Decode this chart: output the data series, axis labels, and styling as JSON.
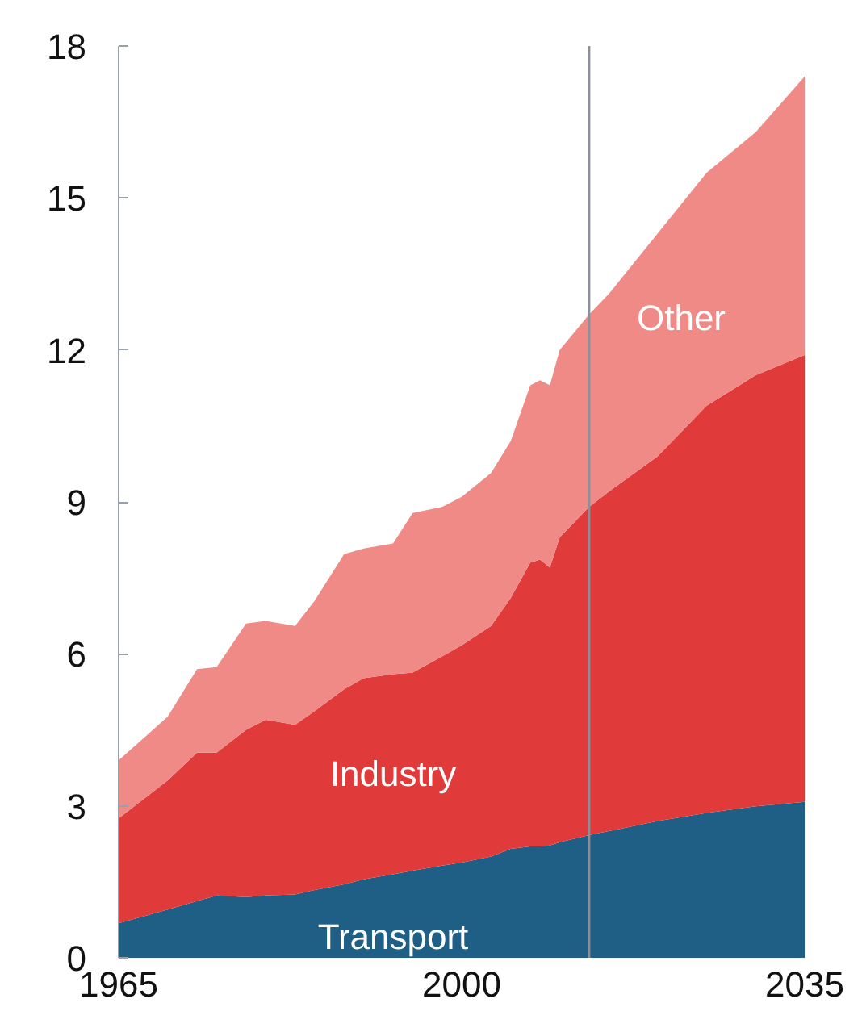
{
  "chart_data": {
    "type": "area",
    "stacked": true,
    "x": [
      1965,
      1970,
      1973,
      1975,
      1978,
      1980,
      1983,
      1985,
      1988,
      1990,
      1993,
      1995,
      1998,
      2000,
      2003,
      2005,
      2007,
      2008,
      2009,
      2010,
      2013,
      2015,
      2020,
      2025,
      2030,
      2035
    ],
    "series": [
      {
        "name": "Transport",
        "color": "#1f5f86",
        "values": [
          0.68,
          0.95,
          1.12,
          1.23,
          1.2,
          1.23,
          1.25,
          1.34,
          1.45,
          1.55,
          1.65,
          1.72,
          1.82,
          1.88,
          2.0,
          2.15,
          2.2,
          2.2,
          2.22,
          2.28,
          2.42,
          2.5,
          2.7,
          2.86,
          2.99,
          3.08
        ]
      },
      {
        "name": "Industry",
        "color": "#e03a3a",
        "values": [
          2.07,
          2.55,
          2.93,
          2.82,
          3.3,
          3.47,
          3.35,
          3.53,
          3.85,
          3.97,
          3.95,
          3.91,
          4.13,
          4.29,
          4.55,
          4.95,
          5.6,
          5.66,
          5.48,
          6.02,
          6.48,
          6.7,
          7.2,
          8.04,
          8.51,
          8.82
        ]
      },
      {
        "name": "Other",
        "color": "#f08a86",
        "values": [
          1.15,
          1.26,
          1.65,
          1.69,
          2.1,
          1.95,
          1.95,
          2.18,
          2.67,
          2.56,
          2.58,
          3.15,
          2.95,
          2.93,
          3.02,
          3.1,
          3.5,
          3.54,
          3.6,
          3.7,
          3.8,
          3.9,
          4.4,
          4.6,
          4.8,
          5.5
        ]
      }
    ],
    "xlim": [
      1965,
      2035
    ],
    "xticks": [
      1965,
      2000,
      2035
    ],
    "ylim": [
      0,
      18
    ],
    "yticks": [
      0,
      3,
      6,
      9,
      12,
      15,
      18
    ],
    "ref_lines": [
      {
        "axis": "x",
        "value": 2013,
        "color": "#8a8f99"
      }
    ],
    "grid": false
  }
}
